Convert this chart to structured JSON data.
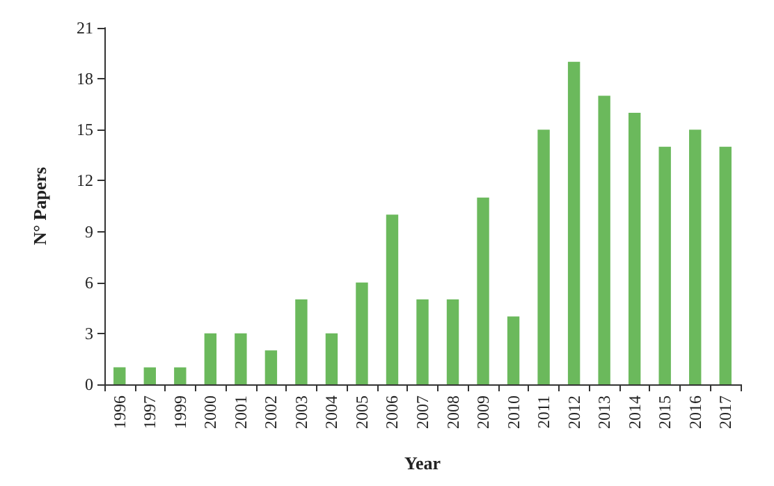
{
  "chart_data": {
    "type": "bar",
    "xlabel": "Year",
    "ylabel": "N° Papers",
    "categories": [
      "1996",
      "1997",
      "1999",
      "2000",
      "2001",
      "2002",
      "2003",
      "2004",
      "2005",
      "2006",
      "2007",
      "2008",
      "2009",
      "2010",
      "2011",
      "2012",
      "2013",
      "2014",
      "2015",
      "2016",
      "2017"
    ],
    "values": [
      1,
      1,
      1,
      3,
      3,
      2,
      5,
      3,
      6,
      10,
      5,
      5,
      11,
      4,
      15,
      19,
      17,
      16,
      14,
      15,
      14
    ],
    "color": "#6bb95c",
    "ylim": [
      0,
      21
    ],
    "yticks": [
      0,
      3,
      6,
      9,
      12,
      15,
      18,
      21
    ],
    "grid": false
  }
}
